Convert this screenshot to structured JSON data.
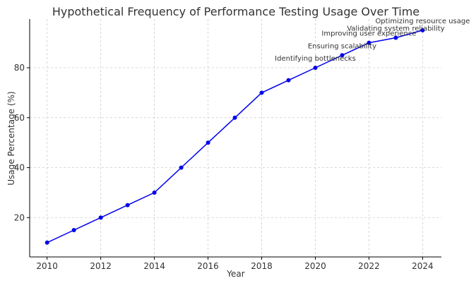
{
  "chart_data": {
    "type": "line",
    "title": "Hypothetical Frequency of Performance Testing Usage Over Time",
    "xlabel": "Year",
    "ylabel": "Usage Percentage (%)",
    "x": [
      2010,
      2011,
      2012,
      2013,
      2014,
      2015,
      2016,
      2017,
      2018,
      2019,
      2020,
      2021,
      2022,
      2023,
      2024
    ],
    "series": [
      {
        "values": [
          10,
          15,
          20,
          25,
          30,
          40,
          50,
          60,
          70,
          75,
          80,
          85,
          90,
          92,
          95
        ],
        "color": "#0000ee"
      }
    ],
    "xlim": [
      2009.35,
      2024.7
    ],
    "ylim": [
      4.25,
      99.5
    ],
    "x_ticks": [
      2010,
      2012,
      2014,
      2016,
      2018,
      2020,
      2022,
      2024
    ],
    "y_ticks": [
      20,
      40,
      60,
      80
    ],
    "x_tick_labels": [
      "2010",
      "2012",
      "2014",
      "2016",
      "2018",
      "2020",
      "2022",
      "2024"
    ],
    "y_tick_labels": [
      "20",
      "40",
      "60",
      "80"
    ],
    "grid": true,
    "grid_style": "dashed",
    "annotations": [
      {
        "x": 2020,
        "y": 80,
        "text": "Identifying bottlenecks"
      },
      {
        "x": 2021,
        "y": 85,
        "text": "Ensuring scalability"
      },
      {
        "x": 2022,
        "y": 90,
        "text": "Improving user experience"
      },
      {
        "x": 2023,
        "y": 92,
        "text": "Validating system reliability"
      },
      {
        "x": 2024,
        "y": 95,
        "text": "Optimizing resource usage"
      }
    ]
  }
}
